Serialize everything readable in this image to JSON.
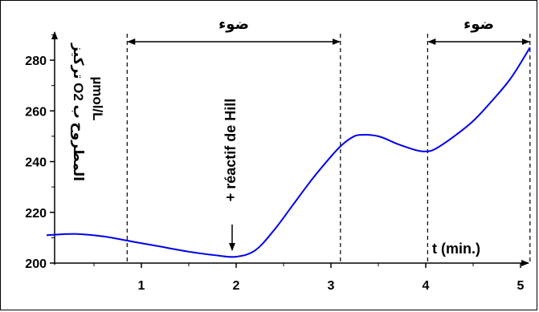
{
  "chart_data": {
    "type": "line",
    "title": "",
    "xlabel": "t (min.)",
    "ylabel_line1": "تركيز O2 المطروح ب",
    "ylabel_line2": "µmol/L",
    "xlim": [
      0,
      5.6
    ],
    "ylim": [
      200,
      290
    ],
    "x_ticks": [
      1,
      2,
      3,
      4,
      5
    ],
    "y_ticks": [
      200,
      220,
      240,
      260,
      280
    ],
    "grid": false,
    "line_color": "#0000ee",
    "series": [
      {
        "x": [
          0,
          0.3,
          0.6,
          0.9,
          1.2,
          1.5,
          1.8,
          2.0,
          2.2,
          2.4,
          2.6,
          2.8,
          3.0,
          3.1,
          3.2,
          3.3,
          3.5,
          3.7,
          3.9,
          4.0,
          4.1,
          4.3,
          4.5,
          4.7,
          4.9,
          5.1
        ],
        "y": [
          211,
          211.5,
          210.5,
          208.5,
          206.5,
          204.5,
          203,
          202.5,
          205,
          213,
          223,
          233,
          242,
          246,
          249,
          250.5,
          250,
          247,
          244.5,
          244,
          245,
          250,
          256,
          264,
          273,
          285
        ]
      }
    ],
    "light_periods": [
      {
        "start": 0.85,
        "end": 3.1,
        "label": "ضوء"
      },
      {
        "start": 4.02,
        "end": 5.1,
        "label": "ضوء"
      }
    ],
    "annotation": {
      "text": "+ réactif de Hill",
      "x": 2.0,
      "arrow": "←"
    }
  }
}
